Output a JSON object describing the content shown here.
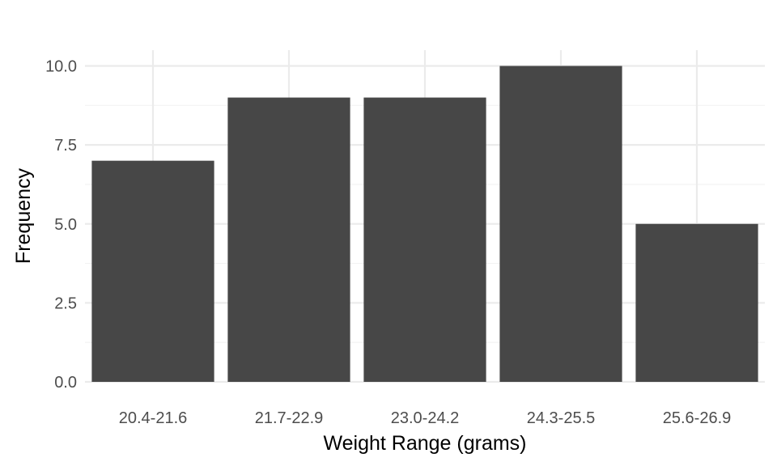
{
  "chart_data": {
    "type": "bar",
    "title": "",
    "xlabel": "Weight Range (grams)",
    "ylabel": "Frequency",
    "categories": [
      "20.4-21.6",
      "21.7-22.9",
      "23.0-24.2",
      "24.3-25.5",
      "25.6-26.9"
    ],
    "values": [
      7,
      9,
      9,
      10,
      5
    ],
    "ylim": [
      0,
      10.5
    ],
    "yticks": [
      0,
      2.5,
      5,
      7.5,
      10
    ],
    "ytick_labels": [
      "0.0",
      "2.5",
      "5.0",
      "7.5",
      "10.0"
    ],
    "grid": true,
    "legend": "none",
    "colors": {
      "bar": "#474747",
      "grid_major": "#ebebeb",
      "grid_minor": "#f2f2f2"
    }
  }
}
